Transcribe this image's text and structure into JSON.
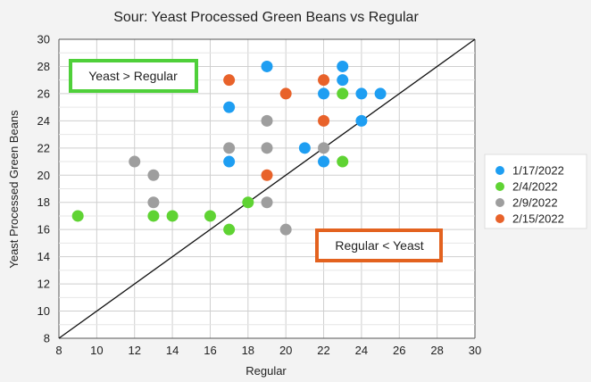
{
  "chart_data": {
    "type": "scatter",
    "title": "Sour: Yeast Processed Green Beans vs Regular",
    "xlabel": "Regular",
    "ylabel": "Yeast Processed Green Beans",
    "xlim": [
      8,
      30
    ],
    "ylim": [
      8,
      30
    ],
    "xticks": [
      "8",
      "10",
      "12",
      "14",
      "16",
      "18",
      "20",
      "22",
      "24",
      "26",
      "28",
      "30"
    ],
    "yticks": [
      "8",
      "10",
      "12",
      "14",
      "16",
      "18",
      "20",
      "22",
      "24",
      "26",
      "28",
      "30"
    ],
    "grid": true,
    "legend_position": "right",
    "reference_line": {
      "from": [
        8,
        8
      ],
      "to": [
        30,
        30
      ],
      "color": "#111111"
    },
    "series": [
      {
        "name": "1/17/2022",
        "color": "#1e9ef2",
        "points": [
          [
            19,
            28
          ],
          [
            23,
            28
          ],
          [
            23,
            27
          ],
          [
            22,
            26
          ],
          [
            24,
            26
          ],
          [
            25,
            26
          ],
          [
            17,
            25
          ],
          [
            24,
            24
          ],
          [
            21,
            22
          ],
          [
            17,
            21
          ],
          [
            22,
            21
          ]
        ]
      },
      {
        "name": "2/4/2022",
        "color": "#5fd333",
        "points": [
          [
            23,
            26
          ],
          [
            23,
            21
          ],
          [
            18,
            18
          ],
          [
            9,
            17
          ],
          [
            13,
            17
          ],
          [
            14,
            17
          ],
          [
            16,
            17
          ],
          [
            17,
            16
          ]
        ]
      },
      {
        "name": "2/9/2022",
        "color": "#9e9e9e",
        "points": [
          [
            19,
            24
          ],
          [
            17,
            22
          ],
          [
            19,
            22
          ],
          [
            22,
            22
          ],
          [
            12,
            21
          ],
          [
            13,
            20
          ],
          [
            13,
            18
          ],
          [
            19,
            18
          ],
          [
            20,
            16
          ]
        ]
      },
      {
        "name": "2/15/2022",
        "color": "#e8622a",
        "points": [
          [
            17,
            27
          ],
          [
            22,
            27
          ],
          [
            20,
            26
          ],
          [
            22,
            24
          ],
          [
            19,
            20
          ]
        ]
      }
    ],
    "annotations": [
      {
        "text": "Yeast > Regular",
        "border_color": "#4fd03a"
      },
      {
        "text": "Regular < Yeast",
        "border_color": "#e3621f"
      }
    ]
  }
}
